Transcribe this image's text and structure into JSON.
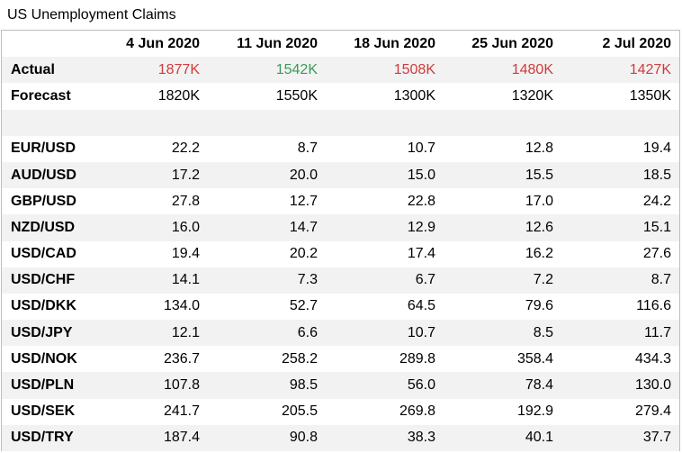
{
  "title": "US Unemployment Claims",
  "colors": {
    "red": "#d13b3b",
    "green": "#3a9a5a",
    "alt_row": "#f2f2f2"
  },
  "chart_data": {
    "type": "table",
    "title": "US Unemployment Claims",
    "columns": [
      "4 Jun 2020",
      "11 Jun 2020",
      "18 Jun 2020",
      "25 Jun 2020",
      "2 Jul 2020"
    ],
    "actual": {
      "label": "Actual",
      "values": [
        "1877K",
        "1542K",
        "1508K",
        "1480K",
        "1427K"
      ],
      "colors": [
        "#d13b3b",
        "#3a9a5a",
        "#d13b3b",
        "#d13b3b",
        "#d13b3b"
      ]
    },
    "forecast": {
      "label": "Forecast",
      "values": [
        "1820K",
        "1550K",
        "1300K",
        "1320K",
        "1350K"
      ]
    },
    "pairs": [
      {
        "name": "EUR/USD",
        "values": [
          "22.2",
          "8.7",
          "10.7",
          "12.8",
          "19.4"
        ]
      },
      {
        "name": "AUD/USD",
        "values": [
          "17.2",
          "20.0",
          "15.0",
          "15.5",
          "18.5"
        ]
      },
      {
        "name": "GBP/USD",
        "values": [
          "27.8",
          "12.7",
          "22.8",
          "17.0",
          "24.2"
        ]
      },
      {
        "name": "NZD/USD",
        "values": [
          "16.0",
          "14.7",
          "12.9",
          "12.6",
          "15.1"
        ]
      },
      {
        "name": "USD/CAD",
        "values": [
          "19.4",
          "20.2",
          "17.4",
          "16.2",
          "27.6"
        ]
      },
      {
        "name": "USD/CHF",
        "values": [
          "14.1",
          "7.3",
          "6.7",
          "7.2",
          "8.7"
        ]
      },
      {
        "name": "USD/DKK",
        "values": [
          "134.0",
          "52.7",
          "64.5",
          "79.6",
          "116.6"
        ]
      },
      {
        "name": "USD/JPY",
        "values": [
          "12.1",
          "6.6",
          "10.7",
          "8.5",
          "11.7"
        ]
      },
      {
        "name": "USD/NOK",
        "values": [
          "236.7",
          "258.2",
          "289.8",
          "358.4",
          "434.3"
        ]
      },
      {
        "name": "USD/PLN",
        "values": [
          "107.8",
          "98.5",
          "56.0",
          "78.4",
          "130.0"
        ]
      },
      {
        "name": "USD/SEK",
        "values": [
          "241.7",
          "205.5",
          "269.8",
          "192.9",
          "279.4"
        ]
      },
      {
        "name": "USD/TRY",
        "values": [
          "187.4",
          "90.8",
          "38.3",
          "40.1",
          "37.7"
        ]
      }
    ]
  }
}
